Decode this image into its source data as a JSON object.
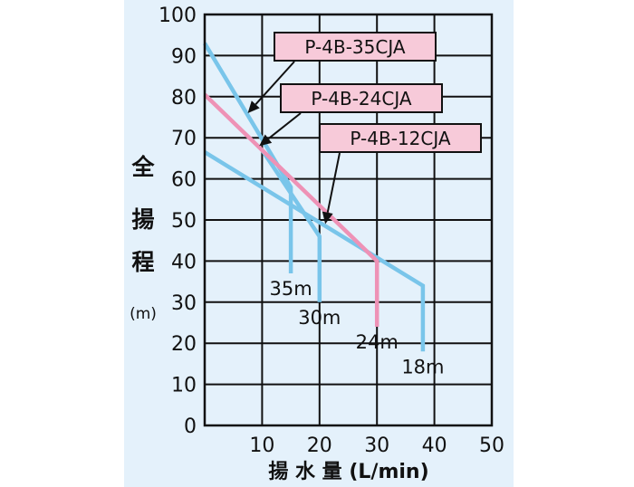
{
  "chart_data": {
    "type": "line",
    "xlabel": "揚 水 量 (L/min)",
    "ylabel_chars": [
      "全",
      "揚",
      "程"
    ],
    "ylabel_unit": "(m)",
    "xlim": [
      0,
      50
    ],
    "ylim": [
      0,
      100
    ],
    "xticks": [
      10,
      20,
      30,
      40,
      50
    ],
    "yticks": [
      0,
      10,
      20,
      30,
      40,
      50,
      60,
      70,
      80,
      90,
      100
    ],
    "grid": true,
    "series": [
      {
        "name": "P-4B-35CJA",
        "color": "#79c5ea",
        "points": [
          [
            0,
            93
          ],
          [
            15,
            58
          ],
          [
            15,
            37
          ]
        ]
      },
      {
        "name": "P-4B-24CJA",
        "color": "#ee92b6",
        "points": [
          [
            0,
            80.5
          ],
          [
            30,
            40
          ],
          [
            30,
            24
          ]
        ]
      },
      {
        "name": "P-4B-12CJA",
        "color": "#79c5ea",
        "points": [
          [
            0,
            66.5
          ],
          [
            38,
            34
          ],
          [
            38,
            18
          ]
        ]
      },
      {
        "name": "",
        "color": "#79c5ea",
        "points": [
          [
            10,
            67
          ],
          [
            20,
            46
          ],
          [
            20,
            30
          ]
        ]
      }
    ],
    "callouts": [
      {
        "text": "P-4B-35CJA",
        "target": [
          7.5,
          76
        ]
      },
      {
        "text": "P-4B-24CJA",
        "target": [
          9.5,
          68
        ]
      },
      {
        "text": "P-4B-12CJA",
        "target": [
          21,
          49
        ]
      }
    ],
    "end_labels": [
      {
        "text": "35m",
        "x": 15,
        "y": 37
      },
      {
        "text": "30m",
        "x": 20,
        "y": 30
      },
      {
        "text": "24m",
        "x": 30,
        "y": 24
      },
      {
        "text": "18m",
        "x": 38,
        "y": 18
      }
    ]
  }
}
